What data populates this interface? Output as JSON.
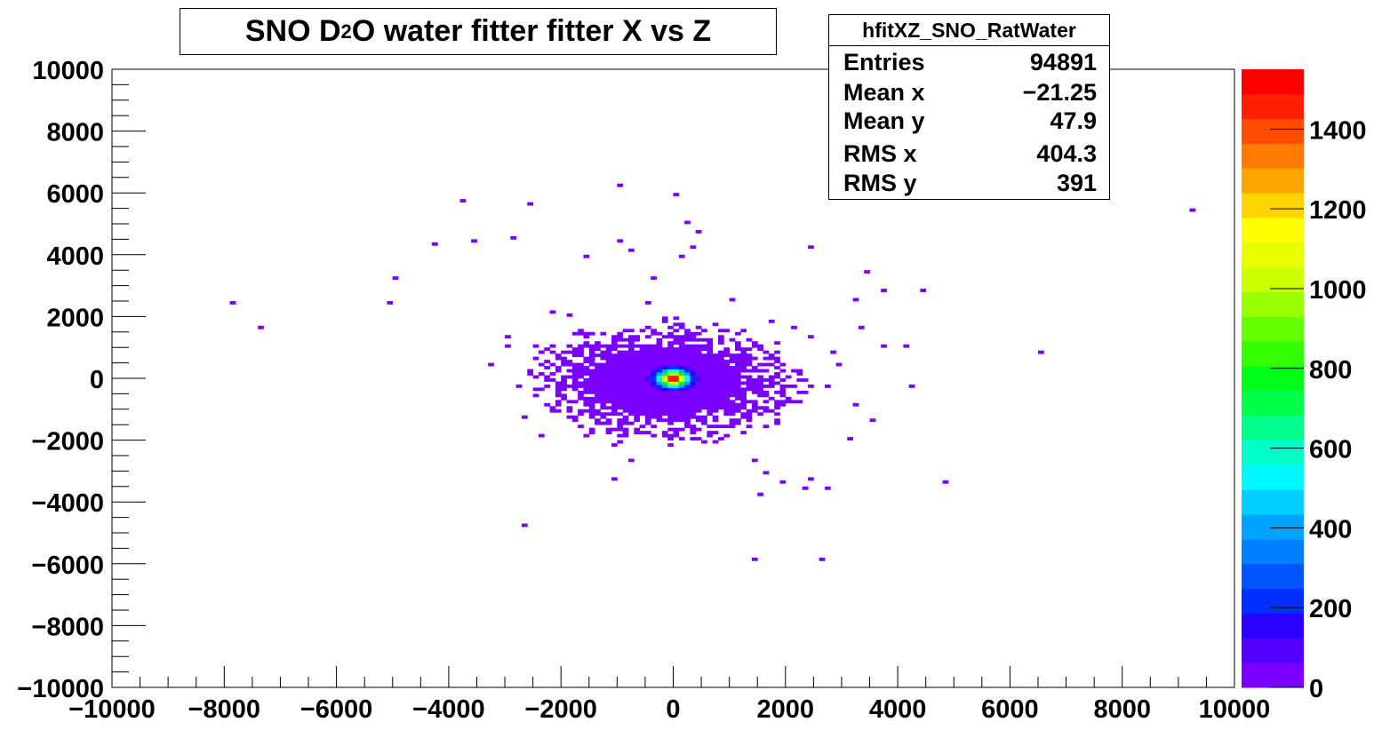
{
  "title": {
    "pre": "SNO D",
    "sub": "2",
    "post": "O water fitter  fitter X vs Z"
  },
  "stats": {
    "name": "hfitXZ_SNO_RatWater",
    "rows": [
      {
        "label": "Entries",
        "value": "94891"
      },
      {
        "label": "Mean x",
        "value": "−21.25"
      },
      {
        "label": "Mean y",
        "value": "47.9"
      },
      {
        "label": "RMS x",
        "value": "404.3"
      },
      {
        "label": "RMS y",
        "value": "391"
      }
    ]
  },
  "chart_data": {
    "type": "heatmap",
    "title": "SNO D2O water fitter  fitter X vs Z",
    "xlabel": "",
    "ylabel": "",
    "xlim": [
      -10000,
      10000
    ],
    "ylim": [
      -10000,
      10000
    ],
    "x_ticks": [
      -10000,
      -8000,
      -6000,
      -4000,
      -2000,
      0,
      2000,
      4000,
      6000,
      8000,
      10000
    ],
    "y_ticks": [
      -10000,
      -8000,
      -6000,
      -4000,
      -2000,
      0,
      2000,
      4000,
      6000,
      8000,
      10000
    ],
    "x_tick_labels": [
      "−10000",
      "−8000",
      "−6000",
      "−4000",
      "−2000",
      "0",
      "2000",
      "4000",
      "6000",
      "8000",
      "10000"
    ],
    "y_tick_labels": [
      "−10000",
      "−8000",
      "−6000",
      "−4000",
      "−2000",
      "0",
      "2000",
      "4000",
      "6000",
      "8000",
      "10000"
    ],
    "z_range": [
      0,
      1550
    ],
    "z_ticks": [
      0,
      200,
      400,
      600,
      800,
      1000,
      1200,
      1400
    ],
    "z_tick_labels": [
      "0",
      "200",
      "400",
      "600",
      "800",
      "1000",
      "1200",
      "1400"
    ],
    "palette": [
      "#7a00ff",
      "#5200ff",
      "#2a00ff",
      "#0030ff",
      "#0055ff",
      "#007fff",
      "#00a4ff",
      "#00cfff",
      "#00f8ff",
      "#00ffc8",
      "#00ff8c",
      "#00ff4a",
      "#00ff18",
      "#33ff00",
      "#66ff00",
      "#99ff00",
      "#ccff00",
      "#e8ff00",
      "#ffff00",
      "#ffd400",
      "#ffa500",
      "#ff7a00",
      "#ff4c00",
      "#ff2000",
      "#ff0000"
    ],
    "core": {
      "center": [
        0,
        0
      ],
      "rms_x": 404.3,
      "rms_y": 391,
      "peak": 1550,
      "entries": 94891
    },
    "halo": {
      "center": [
        -150,
        -100
      ],
      "radius_x": 1900,
      "radius_y": 1500
    },
    "outlier_points": [
      [
        -7900,
        2400
      ],
      [
        -7400,
        1600
      ],
      [
        -5100,
        2400
      ],
      [
        -5000,
        3200
      ],
      [
        -4300,
        4300
      ],
      [
        -3600,
        4400
      ],
      [
        -3800,
        5700
      ],
      [
        -2900,
        4500
      ],
      [
        -2600,
        5600
      ],
      [
        -1600,
        3900
      ],
      [
        -1000,
        6200
      ],
      [
        -1000,
        4400
      ],
      [
        -800,
        4100
      ],
      [
        -400,
        3200
      ],
      [
        0,
        5900
      ],
      [
        200,
        5000
      ],
      [
        400,
        4700
      ],
      [
        300,
        4200
      ],
      [
        100,
        3900
      ],
      [
        2400,
        4200
      ],
      [
        3400,
        3400
      ],
      [
        4400,
        2800
      ],
      [
        3700,
        2800
      ],
      [
        3200,
        2500
      ],
      [
        3300,
        1600
      ],
      [
        4100,
        1000
      ],
      [
        3700,
        1000
      ],
      [
        6500,
        800
      ],
      [
        9200,
        5400
      ],
      [
        -3000,
        1300
      ],
      [
        -3000,
        1000
      ],
      [
        -3300,
        400
      ],
      [
        -2800,
        -300
      ],
      [
        -2700,
        -1300
      ],
      [
        -2400,
        -1900
      ],
      [
        -1600,
        -1900
      ],
      [
        -1100,
        -2200
      ],
      [
        -800,
        -2700
      ],
      [
        -1100,
        -3300
      ],
      [
        -2700,
        -4800
      ],
      [
        1400,
        -2700
      ],
      [
        1600,
        -3100
      ],
      [
        1500,
        -3800
      ],
      [
        1900,
        -3400
      ],
      [
        2400,
        -3300
      ],
      [
        2300,
        -3600
      ],
      [
        2700,
        -3600
      ],
      [
        3100,
        -2000
      ],
      [
        3500,
        -1400
      ],
      [
        4200,
        -300
      ],
      [
        4800,
        -3400
      ],
      [
        1400,
        -5900
      ],
      [
        2600,
        -5900
      ],
      [
        3200,
        -900
      ],
      [
        2700,
        -300
      ],
      [
        -2200,
        2100
      ],
      [
        -1900,
        2000
      ],
      [
        -2400,
        800
      ],
      [
        1000,
        2500
      ],
      [
        1700,
        1800
      ],
      [
        2100,
        1600
      ],
      [
        2400,
        1300
      ],
      [
        2800,
        800
      ],
      [
        2900,
        400
      ],
      [
        -500,
        2400
      ]
    ]
  }
}
